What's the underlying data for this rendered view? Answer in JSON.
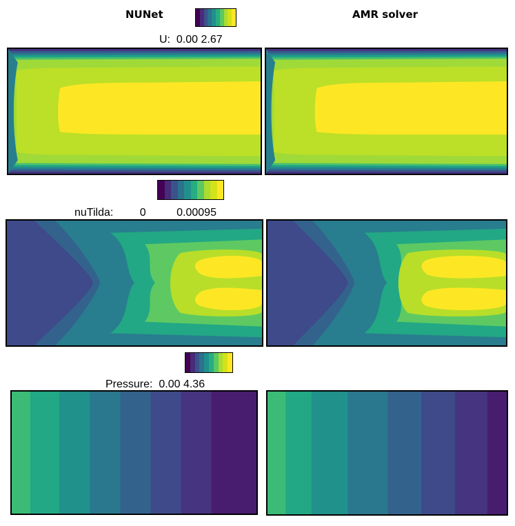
{
  "columns": {
    "left": "NUNet",
    "right": "AMR solver"
  },
  "colorbar_colors": [
    "#440154",
    "#472c7a",
    "#3b528b",
    "#2c728e",
    "#21908d",
    "#27ad81",
    "#5cc863",
    "#aadc32",
    "#d4e21a",
    "#fde725"
  ],
  "fields": [
    {
      "name": "U",
      "label": "U:",
      "min": "0.00",
      "max": "2.67"
    },
    {
      "name": "nuTilda",
      "label": "nuTilda:",
      "min": "0",
      "max": "0.00095"
    },
    {
      "name": "Pressure",
      "label": "Pressure:",
      "min": "0.00",
      "max": "4.36"
    }
  ],
  "chart_data": {
    "type": "heatmap",
    "panels": [
      {
        "field": "U",
        "source": "NUNet",
        "pattern": "channel inlet flow, centre core at max"
      },
      {
        "field": "U",
        "source": "AMR solver",
        "pattern": "channel inlet flow, centre core at max"
      },
      {
        "field": "nuTilda",
        "source": "NUNet",
        "pattern": "chevron bands, two high lobes on right"
      },
      {
        "field": "nuTilda",
        "source": "AMR solver",
        "pattern": "chevron bands, two high lobes on right"
      },
      {
        "field": "Pressure",
        "source": "NUNet",
        "pattern": "vertical bands decreasing left to right"
      },
      {
        "field": "Pressure",
        "source": "AMR solver",
        "pattern": "vertical bands decreasing left to right"
      }
    ],
    "pressure_bands": [
      0.62,
      0.56,
      0.5,
      0.44,
      0.38,
      0.3,
      0.22,
      0.12
    ],
    "pressure_band_colors": [
      "#3bbb75",
      "#22a884",
      "#21918c",
      "#2a788e",
      "#33638d",
      "#3e4a89",
      "#463480",
      "#481d6f"
    ]
  }
}
